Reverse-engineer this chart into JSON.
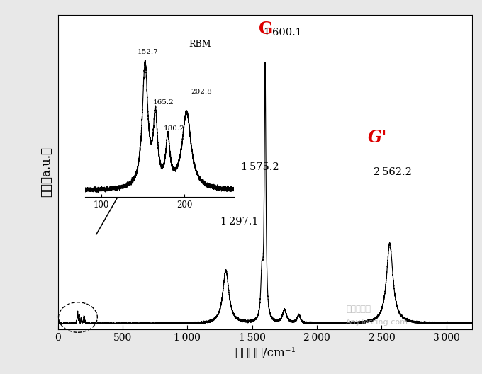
{
  "xlabel": "拉曼频移/cm⁻¹",
  "ylabel": "强度（a.u.）",
  "xlim": [
    0,
    3200
  ],
  "ylim": [
    -0.02,
    1.18
  ],
  "xtick_positions": [
    0,
    500,
    1000,
    1500,
    2000,
    2500,
    3000
  ],
  "xtick_labels": [
    "0",
    "500",
    "1 000",
    "1 500",
    "2 000",
    "2 500",
    "3 000"
  ],
  "background_color": "#ffffff",
  "line_color": "#000000",
  "fig_bg": "#e8e8e8",
  "watermark": "嘉啕检测网",
  "watermark2": "AnyTesting.com"
}
